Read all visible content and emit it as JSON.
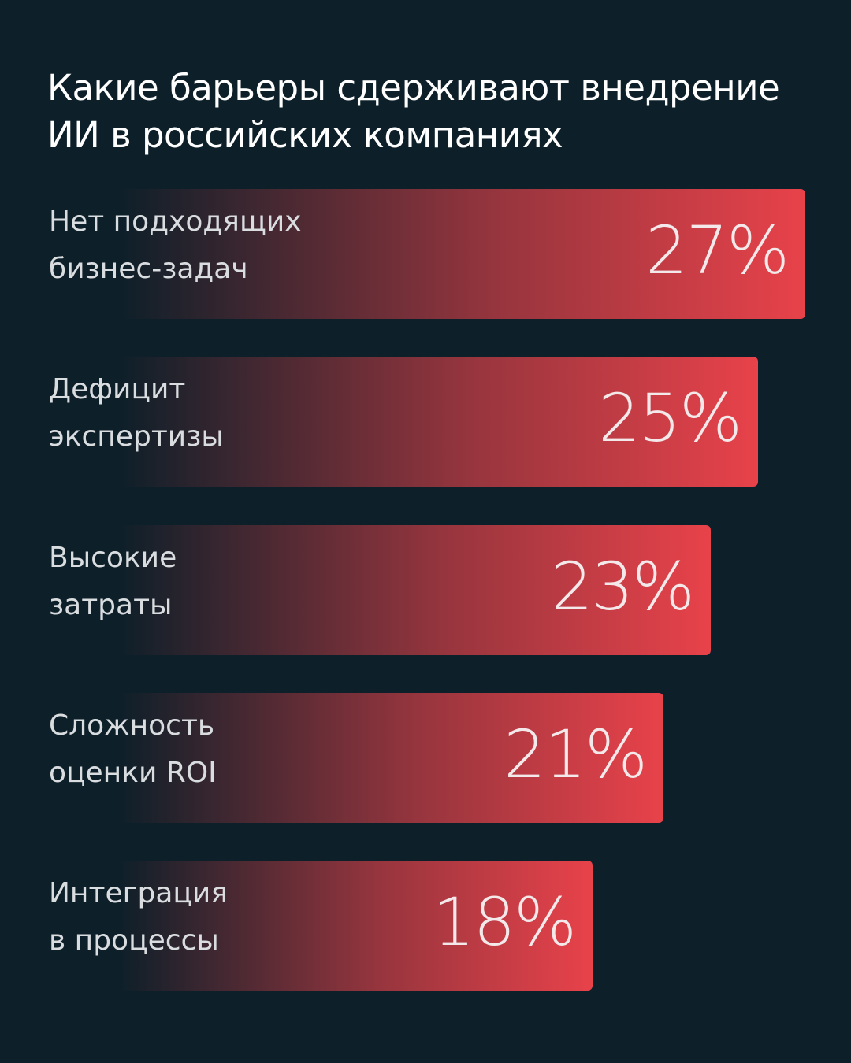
{
  "chart_data": {
    "type": "bar",
    "orientation": "horizontal",
    "title": "Какие барьеры сдерживают внедрение\nИИ в российских компаниях",
    "categories": [
      "Нет подходящих\nбизнес-задач",
      "Дефицит\nэкспертизы",
      "Высокие\nзатраты",
      "Сложность\nоценки ROI",
      "Интеграция\nв процессы"
    ],
    "values": [
      27,
      25,
      23,
      21,
      18
    ],
    "value_labels": [
      "27%",
      "25%",
      "23%",
      "21%",
      "18%"
    ],
    "color": "#e8424a"
  }
}
